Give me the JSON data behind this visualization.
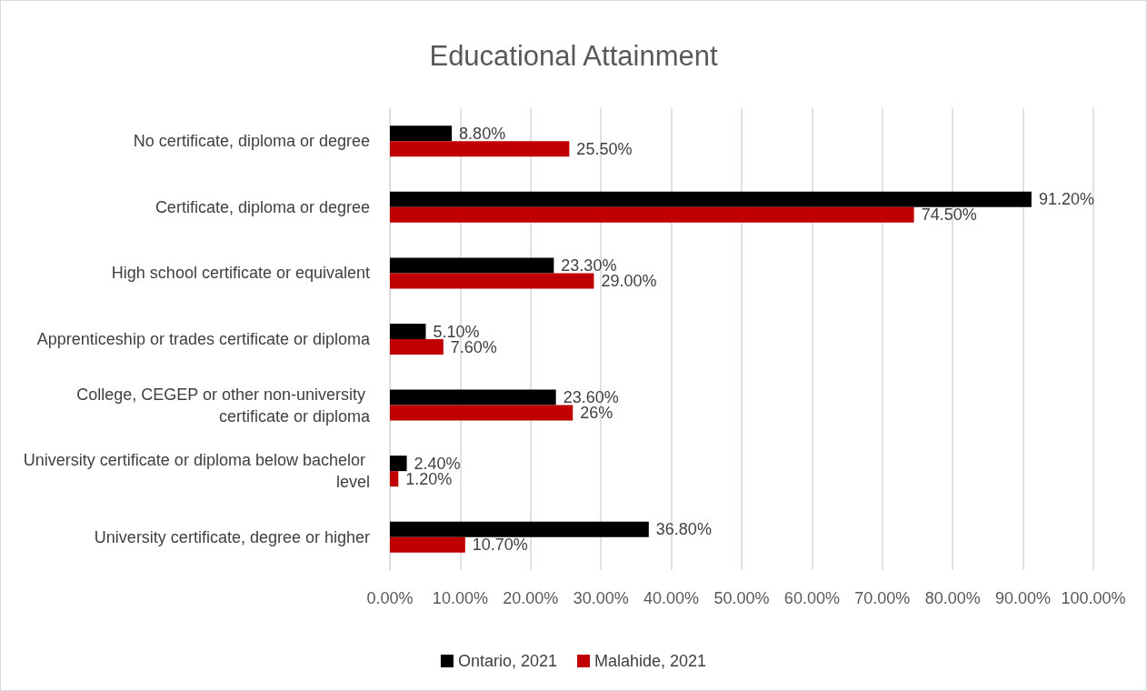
{
  "chart_data": {
    "type": "bar",
    "orientation": "horizontal",
    "title": "Educational Attainment",
    "categories": [
      "No certificate, diploma or degree",
      "Certificate, diploma or degree",
      "High school certificate or equivalent",
      "Apprenticeship or trades certificate or diploma",
      "College, CEGEP or other non-university certificate or diploma",
      "University certificate or diploma below bachelor level",
      "University certificate, degree or higher"
    ],
    "series": [
      {
        "name": "Ontario, 2021",
        "color": "#000000",
        "values": [
          8.8,
          91.2,
          23.3,
          5.1,
          23.6,
          2.4,
          36.8
        ],
        "value_labels": [
          "8.80%",
          "91.20%",
          "23.30%",
          "5.10%",
          "23.60%",
          "2.40%",
          "36.80%"
        ]
      },
      {
        "name": "Malahide, 2021",
        "color": "#c00000",
        "values": [
          25.5,
          74.5,
          29.0,
          7.6,
          26,
          1.2,
          10.7
        ],
        "value_labels": [
          "25.50%",
          "74.50%",
          "29.00%",
          "7.60%",
          "26%",
          "1.20%",
          "10.70%"
        ]
      }
    ],
    "xlim": [
      0,
      100
    ],
    "xticks": [
      {
        "value": 0,
        "label": "0.00%"
      },
      {
        "value": 10,
        "label": "10.00%"
      },
      {
        "value": 20,
        "label": "20.00%"
      },
      {
        "value": 30,
        "label": "30.00%"
      },
      {
        "value": 40,
        "label": "40.00%"
      },
      {
        "value": 50,
        "label": "50.00%"
      },
      {
        "value": 60,
        "label": "60.00%"
      },
      {
        "value": 70,
        "label": "70.00%"
      },
      {
        "value": 80,
        "label": "80.00%"
      },
      {
        "value": 90,
        "label": "90.00%"
      },
      {
        "value": 100,
        "label": "100.00%"
      }
    ],
    "grid": "x",
    "legend": "bottom"
  }
}
